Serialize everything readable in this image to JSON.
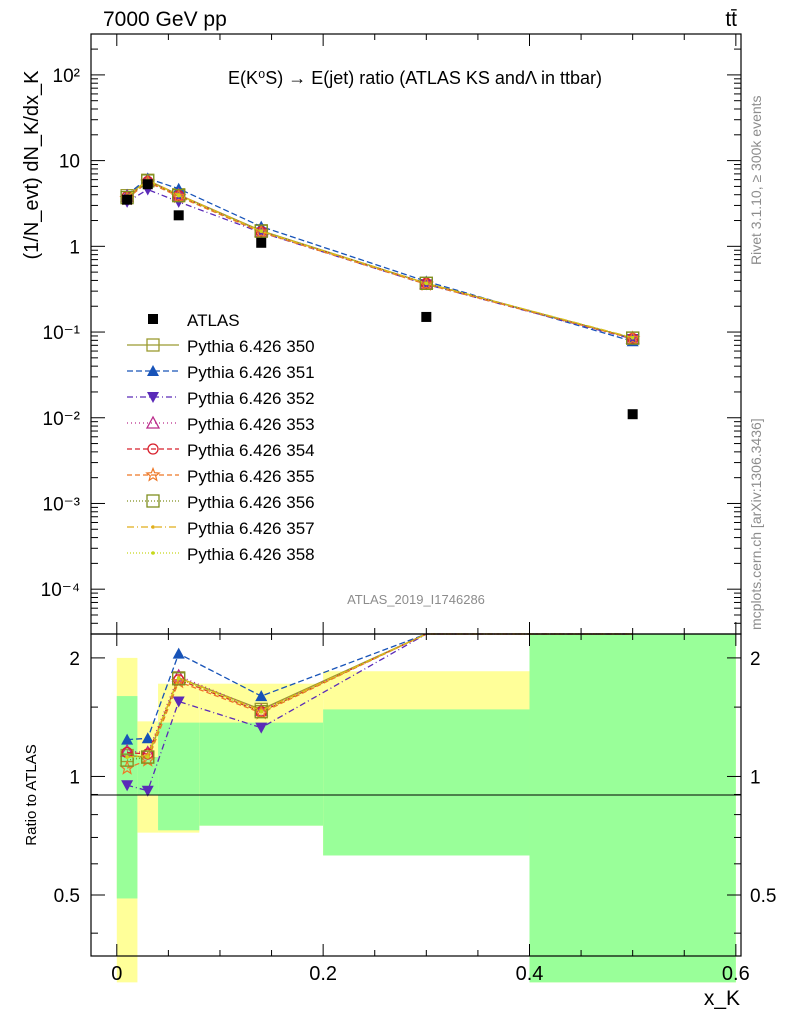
{
  "header": {
    "left": "7000 GeV pp",
    "right": "tt̄"
  },
  "side": {
    "rivet": "Rivet 3.1.10, ≥ 300k events",
    "mcplots": "mcplots.cern.ch [arXiv:1306.3436]"
  },
  "analysis_id": "ATLAS_2019_I1746286",
  "chart_data": {
    "type": "line",
    "title": "E(K⁰S) → E(jet) ratio (ATLAS KS andΛ in ttbar)",
    "xlabel": "x_K",
    "ylabel": "(1/N_evt) dN_K/dx_K",
    "ratio_ylabel": "Ratio to ATLAS",
    "xlim": [
      -0.025,
      0.605
    ],
    "ylim": [
      3e-05,
      300
    ],
    "ylog": true,
    "ratio_ylim": [
      0.35,
      2.3
    ],
    "ratio_ylog": true,
    "x_ticks": [
      "0",
      "0.2",
      "0.4",
      "0.6"
    ],
    "y_ticks": [
      "10⁻⁴",
      "10⁻³",
      "10⁻²",
      "10⁻¹",
      "1",
      "10",
      "10²"
    ],
    "ratio_ticks": [
      "0.5",
      "1",
      "2"
    ],
    "bins": [
      [
        0.0,
        0.02
      ],
      [
        0.02,
        0.04
      ],
      [
        0.04,
        0.08
      ],
      [
        0.08,
        0.2
      ],
      [
        0.2,
        0.4
      ],
      [
        0.4,
        0.6
      ]
    ],
    "x": [
      0.01,
      0.03,
      0.06,
      0.14,
      0.3,
      0.5
    ],
    "data": {
      "name": "ATLAS",
      "values": [
        3.5,
        5.3,
        2.3,
        1.1,
        0.15,
        0.011
      ],
      "band_stat": [
        [
          0.49,
          1.6
        ],
        [
          0.9,
          1.12
        ],
        [
          0.73,
          1.37
        ],
        [
          0.75,
          1.37
        ],
        [
          0.63,
          1.48
        ],
        [
          0.3,
          3.0
        ]
      ],
      "band_total": [
        [
          0.3,
          2.0
        ],
        [
          0.72,
          1.38
        ],
        [
          0.72,
          1.72
        ],
        [
          0.75,
          1.72
        ],
        [
          0.63,
          1.85
        ],
        [
          0.3,
          3.0
        ]
      ]
    },
    "series": [
      {
        "name": "Pythia 6.426 350",
        "color": "#9b9b30",
        "dash": "",
        "marker": "open-square",
        "values": [
          3.9,
          5.9,
          4.0,
          1.52,
          0.37,
          0.085
        ],
        "ratio": [
          1.13,
          1.12,
          1.78,
          1.48,
          2.3,
          2.3
        ]
      },
      {
        "name": "Pythia 6.426 351",
        "color": "#1753b8",
        "dash": "6,3",
        "marker": "filled-triangle-up",
        "values": [
          4.0,
          6.2,
          4.7,
          1.7,
          0.39,
          0.078
        ],
        "ratio": [
          1.24,
          1.25,
          2.05,
          1.6,
          2.3,
          2.3
        ]
      },
      {
        "name": "Pythia 6.426 352",
        "color": "#5a2ab8",
        "dash": "6,3,1,3",
        "marker": "filled-triangle-down",
        "values": [
          3.3,
          4.6,
          3.3,
          1.45,
          0.36,
          0.083
        ],
        "ratio": [
          0.95,
          0.92,
          1.55,
          1.33,
          2.3,
          2.3
        ]
      },
      {
        "name": "Pythia 6.426 353",
        "color": "#bb2a8a",
        "dash": "1,3",
        "marker": "open-triangle-up",
        "values": [
          3.8,
          5.8,
          4.0,
          1.5,
          0.37,
          0.085
        ],
        "ratio": [
          1.16,
          1.15,
          1.8,
          1.47,
          2.3,
          2.3
        ]
      },
      {
        "name": "Pythia 6.426 354",
        "color": "#d8202c",
        "dash": "5,3",
        "marker": "open-circle",
        "values": [
          3.8,
          5.7,
          3.9,
          1.48,
          0.37,
          0.084
        ],
        "ratio": [
          1.15,
          1.14,
          1.76,
          1.46,
          2.3,
          2.3
        ]
      },
      {
        "name": "Pythia 6.426 355",
        "color": "#ee7726",
        "dash": "5,3",
        "marker": "open-star",
        "values": [
          3.6,
          5.6,
          3.8,
          1.46,
          0.36,
          0.084
        ],
        "ratio": [
          1.05,
          1.1,
          1.74,
          1.45,
          2.3,
          2.3
        ]
      },
      {
        "name": "Pythia 6.426 356",
        "color": "#7f8f1f",
        "dash": "1,2",
        "marker": "open-square",
        "values": [
          3.7,
          5.8,
          3.9,
          1.5,
          0.37,
          0.085
        ],
        "ratio": [
          1.1,
          1.12,
          1.77,
          1.46,
          2.3,
          2.3
        ]
      },
      {
        "name": "Pythia 6.426 357",
        "color": "#e0ae1a",
        "dash": "7,3,1,3",
        "marker": "small-dot",
        "values": [
          3.8,
          5.9,
          4.0,
          1.5,
          0.37,
          0.086
        ],
        "ratio": [
          1.12,
          1.13,
          1.78,
          1.47,
          2.3,
          2.3
        ]
      },
      {
        "name": "Pythia 6.426 358",
        "color": "#c6d81c",
        "dash": "1,2",
        "marker": "small-dot",
        "values": [
          3.8,
          5.8,
          3.9,
          1.5,
          0.37,
          0.086
        ],
        "ratio": [
          1.12,
          1.12,
          1.77,
          1.46,
          2.3,
          2.3
        ]
      }
    ]
  }
}
